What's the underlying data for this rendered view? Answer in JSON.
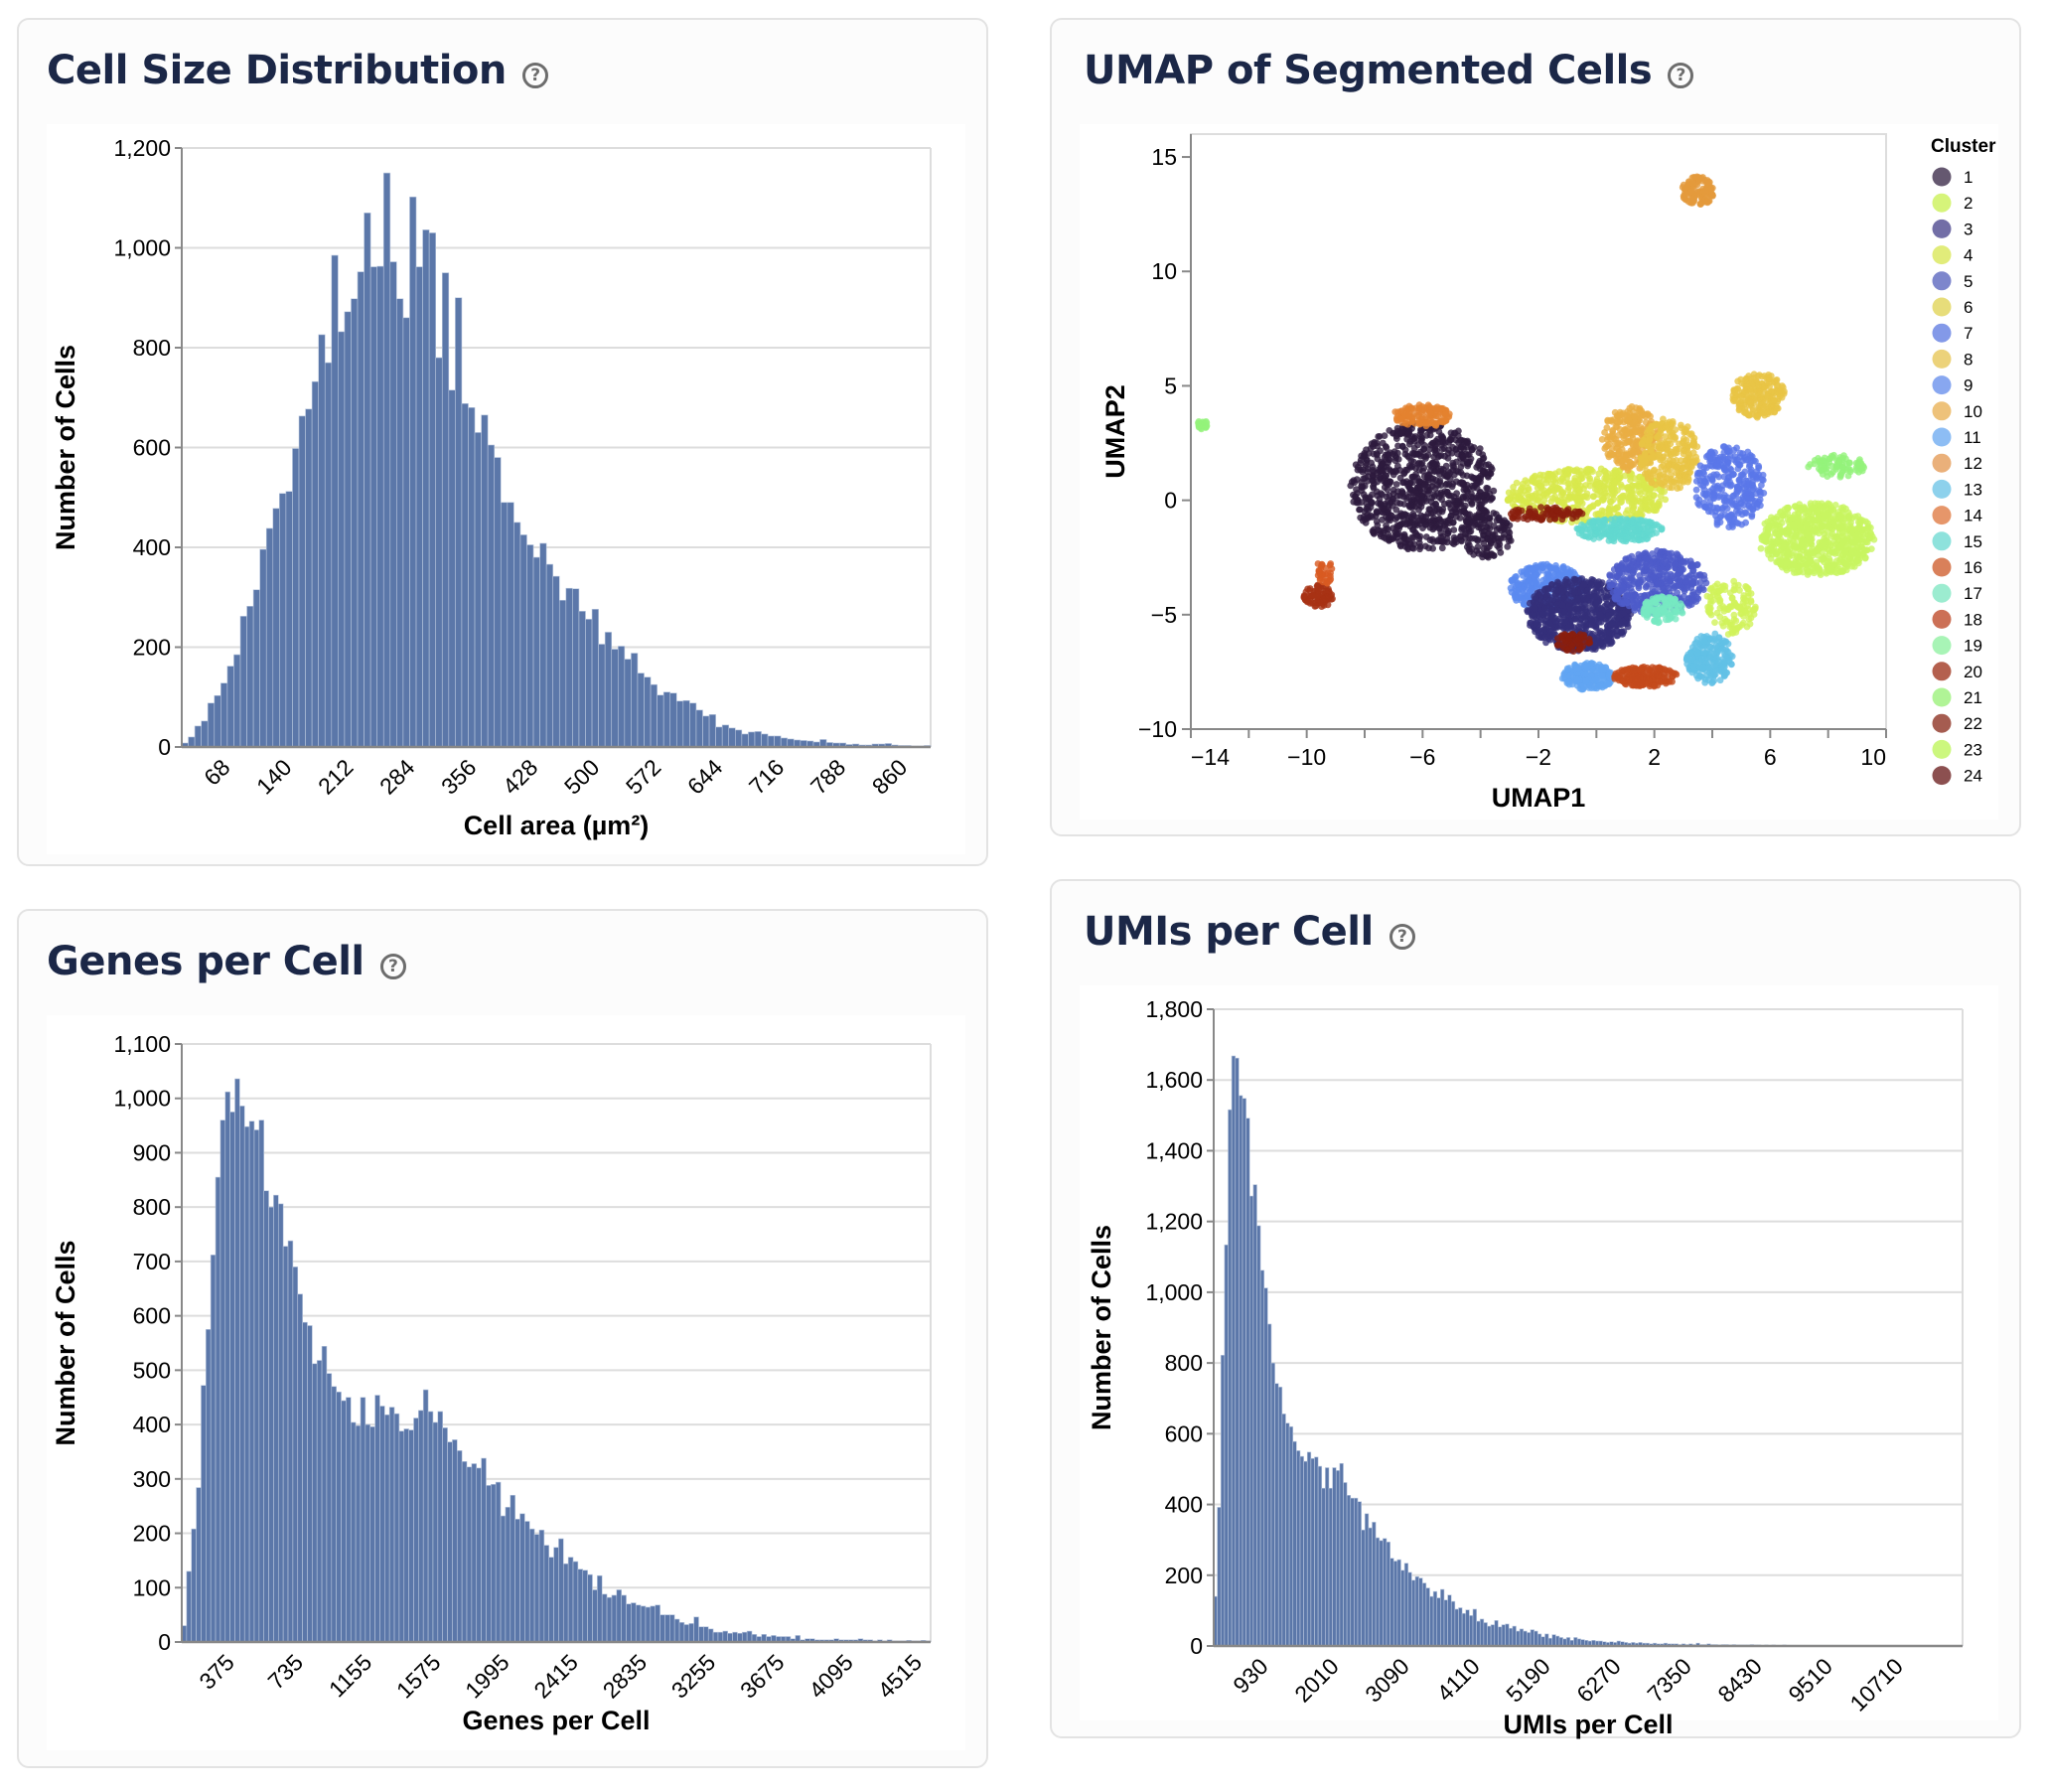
{
  "cards": {
    "cell_size": {
      "title": "Cell Size Distribution",
      "help": "?"
    },
    "umap": {
      "title": "UMAP of Segmented Cells",
      "help": "?"
    },
    "genes": {
      "title": "Genes per Cell",
      "help": "?"
    },
    "umis": {
      "title": "UMIs per Cell",
      "help": "?"
    }
  },
  "colors": {
    "bar": "#5b77a9",
    "title": "#1b2747"
  },
  "chart_data": [
    {
      "id": "cell_size",
      "type": "bar",
      "title": "Cell Size Distribution",
      "xlabel": "Cell area (µm²)",
      "ylabel": "Number of Cells",
      "ylim": [
        0,
        1200
      ],
      "yticks": [
        0,
        200,
        400,
        600,
        800,
        1000,
        1200
      ],
      "xtick_labels": [
        "68",
        "140",
        "212",
        "284",
        "356",
        "428",
        "500",
        "572",
        "644",
        "716",
        "788",
        "860"
      ],
      "grid": true,
      "values": [
        8,
        20,
        42,
        52,
        88,
        103,
        128,
        162,
        185,
        262,
        282,
        315,
        396,
        438,
        478,
        508,
        512,
        598,
        663,
        677,
        732,
        826,
        770,
        985,
        832,
        872,
        898,
        952,
        1070,
        962,
        963,
        1150,
        972,
        898,
        860,
        1102,
        962,
        1036,
        1030,
        780,
        950,
        715,
        900,
        688,
        680,
        630,
        665,
        605,
        580,
        490,
        490,
        450,
        425,
        405,
        380,
        408,
        366,
        342,
        294,
        318,
        317,
        272,
        256,
        276,
        206,
        230,
        196,
        202,
        176,
        188,
        148,
        140,
        125,
        104,
        110,
        108,
        92,
        93,
        88,
        74,
        62,
        65,
        40,
        44,
        38,
        34,
        26,
        30,
        31,
        26,
        22,
        22,
        18,
        16,
        14,
        13,
        12,
        10,
        15,
        9,
        8,
        8,
        5,
        6,
        4,
        4,
        6,
        6,
        7,
        4,
        3,
        3,
        2,
        2,
        3
      ],
      "legend": "none"
    },
    {
      "id": "umap",
      "type": "scatter",
      "title": "UMAP of Segmented Cells",
      "xlabel": "UMAP1",
      "ylabel": "UMAP2",
      "xlim": [
        -14,
        10
      ],
      "ylim": [
        -10,
        16
      ],
      "xticks": [
        -14,
        -10,
        -6,
        -2,
        2,
        6,
        10
      ],
      "yticks": [
        -10,
        -5,
        0,
        5,
        10,
        15
      ],
      "legend": "right",
      "legend_title": "Cluster",
      "clusters": [
        {
          "name": "1",
          "color": "#2d1a3d"
        },
        {
          "name": "2",
          "color": "#d1f25a"
        },
        {
          "name": "3",
          "color": "#35307a"
        },
        {
          "name": "4",
          "color": "#d8e84c"
        },
        {
          "name": "5",
          "color": "#4e5bc9"
        },
        {
          "name": "6",
          "color": "#e3d64a"
        },
        {
          "name": "7",
          "color": "#5a77e8"
        },
        {
          "name": "8",
          "color": "#e9c445"
        },
        {
          "name": "9",
          "color": "#5a8af0"
        },
        {
          "name": "10",
          "color": "#eaae44"
        },
        {
          "name": "11",
          "color": "#62a5f2"
        },
        {
          "name": "12",
          "color": "#e49a3c"
        },
        {
          "name": "13",
          "color": "#61c1e6"
        },
        {
          "name": "14",
          "color": "#e4822f"
        },
        {
          "name": "15",
          "color": "#62d8cf"
        },
        {
          "name": "16",
          "color": "#d85a22"
        },
        {
          "name": "17",
          "color": "#77e8c2"
        },
        {
          "name": "18",
          "color": "#c44a1c"
        },
        {
          "name": "19",
          "color": "#8af2a8"
        },
        {
          "name": "20",
          "color": "#a83214"
        },
        {
          "name": "21",
          "color": "#94f27a"
        },
        {
          "name": "22",
          "color": "#8a1e0e"
        },
        {
          "name": "23",
          "color": "#c8f560"
        },
        {
          "name": "24",
          "color": "#6a1c1c"
        }
      ],
      "legend_colors": [
        "#655870",
        "#d6f47a",
        "#726ea6",
        "#e1ec7a",
        "#7d86cc",
        "#e7dd7a",
        "#8399e8",
        "#ecd27a",
        "#88a7f0",
        "#eec27a",
        "#8dbdf4",
        "#eab07a",
        "#8dd1ec",
        "#e6966a",
        "#8ee2dc",
        "#d9805a",
        "#9cecd0",
        "#cc7056",
        "#a8f4b6",
        "#b4604e",
        "#b0f496",
        "#a55c50",
        "#ccf77e",
        "#8c5050"
      ],
      "groups": [
        {
          "cluster": "1",
          "cx": -6.0,
          "cy": 0.6,
          "rx": 2.5,
          "ry": 2.8,
          "n": 900
        },
        {
          "cluster": "14",
          "cx": -6.0,
          "cy": 3.7,
          "rx": 1.0,
          "ry": 0.5,
          "n": 120
        },
        {
          "cluster": "1",
          "cx": -3.8,
          "cy": -1.5,
          "rx": 0.9,
          "ry": 1.0,
          "n": 120
        },
        {
          "cluster": "21",
          "cx": -13.6,
          "cy": 3.3,
          "rx": 0.18,
          "ry": 0.2,
          "n": 20
        },
        {
          "cluster": "20",
          "cx": -9.6,
          "cy": -4.2,
          "rx": 0.5,
          "ry": 0.5,
          "n": 80
        },
        {
          "cluster": "16",
          "cx": -9.4,
          "cy": -3.1,
          "rx": 0.3,
          "ry": 0.6,
          "n": 30
        },
        {
          "cluster": "12",
          "cx": 3.5,
          "cy": 13.5,
          "rx": 0.55,
          "ry": 0.65,
          "n": 120
        },
        {
          "cluster": "4",
          "cx": -0.3,
          "cy": 0.2,
          "rx": 2.8,
          "ry": 1.2,
          "n": 500
        },
        {
          "cluster": "22",
          "cx": -1.8,
          "cy": -0.6,
          "rx": 1.4,
          "ry": 0.3,
          "n": 80
        },
        {
          "cluster": "10",
          "cx": 1.2,
          "cy": 2.7,
          "rx": 1.0,
          "ry": 1.4,
          "n": 250
        },
        {
          "cluster": "8",
          "cx": 2.5,
          "cy": 2.0,
          "rx": 1.0,
          "ry": 1.6,
          "n": 250
        },
        {
          "cluster": "8",
          "cx": 5.6,
          "cy": 4.6,
          "rx": 0.9,
          "ry": 1.0,
          "n": 200
        },
        {
          "cluster": "7",
          "cx": 4.6,
          "cy": 0.6,
          "rx": 1.2,
          "ry": 1.8,
          "n": 300
        },
        {
          "cluster": "15",
          "cx": 0.8,
          "cy": -1.3,
          "rx": 1.5,
          "ry": 0.5,
          "n": 200
        },
        {
          "cluster": "23",
          "cx": 7.6,
          "cy": -1.7,
          "rx": 2.0,
          "ry": 1.6,
          "n": 700
        },
        {
          "cluster": "21",
          "cx": 8.3,
          "cy": 1.5,
          "rx": 1.0,
          "ry": 0.5,
          "n": 80
        },
        {
          "cluster": "9",
          "cx": -1.7,
          "cy": -3.8,
          "rx": 1.3,
          "ry": 1.0,
          "n": 300
        },
        {
          "cluster": "3",
          "cx": -0.6,
          "cy": -5.0,
          "rx": 1.8,
          "ry": 1.6,
          "n": 700
        },
        {
          "cluster": "5",
          "cx": 2.1,
          "cy": -3.6,
          "rx": 1.7,
          "ry": 1.4,
          "n": 450
        },
        {
          "cluster": "17",
          "cx": 2.3,
          "cy": -4.8,
          "rx": 0.7,
          "ry": 0.6,
          "n": 100
        },
        {
          "cluster": "11",
          "cx": -0.3,
          "cy": -7.7,
          "rx": 0.9,
          "ry": 0.6,
          "n": 200
        },
        {
          "cluster": "18",
          "cx": 1.7,
          "cy": -7.7,
          "rx": 1.1,
          "ry": 0.45,
          "n": 180
        },
        {
          "cluster": "13",
          "cx": 3.9,
          "cy": -6.9,
          "rx": 0.8,
          "ry": 1.1,
          "n": 200
        },
        {
          "cluster": "2",
          "cx": 4.6,
          "cy": -4.7,
          "rx": 0.9,
          "ry": 1.2,
          "n": 120
        },
        {
          "cluster": "22",
          "cx": -0.8,
          "cy": -6.2,
          "rx": 0.6,
          "ry": 0.4,
          "n": 60
        }
      ]
    },
    {
      "id": "genes",
      "type": "bar",
      "title": "Genes per Cell",
      "xlabel": "Genes per Cell",
      "ylabel": "Number of Cells",
      "ylim": [
        0,
        1100
      ],
      "yticks": [
        0,
        100,
        200,
        300,
        400,
        500,
        600,
        700,
        800,
        900,
        1000,
        1100
      ],
      "xtick_labels": [
        "375",
        "735",
        "1155",
        "1575",
        "1995",
        "2415",
        "2835",
        "3255",
        "3675",
        "4095",
        "4515"
      ],
      "grid": true,
      "values": [
        30,
        130,
        208,
        284,
        472,
        575,
        712,
        855,
        960,
        1012,
        975,
        1036,
        986,
        948,
        958,
        942,
        960,
        830,
        800,
        822,
        806,
        728,
        738,
        690,
        640,
        588,
        582,
        512,
        518,
        544,
        494,
        470,
        460,
        444,
        450,
        404,
        398,
        450,
        400,
        396,
        454,
        434,
        418,
        432,
        420,
        388,
        392,
        390,
        412,
        426,
        464,
        424,
        404,
        424,
        394,
        368,
        372,
        352,
        332,
        322,
        328,
        320,
        338,
        288,
        290,
        294,
        232,
        248,
        270,
        226,
        236,
        222,
        208,
        198,
        206,
        178,
        156,
        174,
        190,
        144,
        156,
        148,
        134,
        132,
        124,
        96,
        122,
        88,
        82,
        86,
        96,
        86,
        70,
        72,
        68,
        66,
        64,
        66,
        68,
        50,
        50,
        50,
        42,
        36,
        32,
        34,
        46,
        28,
        28,
        24,
        18,
        18,
        20,
        16,
        18,
        16,
        18,
        20,
        14,
        10,
        14,
        10,
        12,
        10,
        10,
        10,
        6,
        12,
        4,
        6,
        6,
        4,
        4,
        4,
        4,
        6,
        4,
        4,
        4,
        4,
        6,
        4,
        4,
        2,
        4,
        2,
        4,
        2,
        2,
        2,
        3,
        2,
        2,
        3,
        2
      ],
      "legend": "none"
    },
    {
      "id": "umis",
      "type": "bar",
      "title": "UMIs per Cell",
      "xlabel": "UMIs per Cell",
      "ylabel": "Number of Cells",
      "ylim": [
        0,
        1800
      ],
      "yticks": [
        0,
        200,
        400,
        600,
        800,
        1000,
        1200,
        1400,
        1600,
        1800
      ],
      "xtick_labels": [
        "930",
        "2010",
        "3090",
        "4110",
        "5190",
        "6270",
        "7350",
        "8430",
        "9510",
        "10710"
      ],
      "grid": true,
      "values": [
        140,
        392,
        822,
        1134,
        1516,
        1668,
        1662,
        1556,
        1548,
        1492,
        1272,
        1304,
        1188,
        1062,
        1012,
        910,
        800,
        742,
        732,
        656,
        630,
        620,
        578,
        552,
        536,
        522,
        548,
        530,
        534,
        508,
        446,
        504,
        446,
        504,
        496,
        516,
        462,
        426,
        418,
        418,
        408,
        328,
        374,
        334,
        350,
        306,
        298,
        304,
        294,
        248,
        240,
        244,
        214,
        234,
        208,
        186,
        196,
        192,
        178,
        164,
        140,
        154,
        136,
        160,
        130,
        144,
        126,
        104,
        108,
        92,
        102,
        86,
        104,
        70,
        76,
        66,
        56,
        60,
        72,
        54,
        60,
        62,
        50,
        56,
        42,
        48,
        42,
        38,
        46,
        42,
        34,
        26,
        34,
        22,
        32,
        28,
        24,
        20,
        24,
        16,
        24,
        20,
        18,
        16,
        14,
        16,
        14,
        14,
        12,
        10,
        12,
        10,
        14,
        12,
        10,
        8,
        10,
        8,
        10,
        8,
        8,
        6,
        8,
        6,
        6,
        8,
        6,
        6,
        6,
        4,
        6,
        4,
        6,
        4,
        8,
        4,
        4,
        6,
        4,
        4,
        3,
        4,
        4,
        3,
        4,
        3,
        3,
        3,
        3,
        4,
        3,
        3,
        2,
        3,
        2,
        3,
        2,
        2,
        3,
        2,
        2,
        2,
        2,
        2,
        2,
        2,
        2,
        2,
        2,
        2,
        2,
        2,
        2,
        2,
        2,
        2,
        1,
        2,
        1,
        2,
        1,
        2,
        1,
        2,
        1,
        1,
        1,
        1,
        1,
        1,
        1,
        1,
        1,
        1,
        1,
        1,
        1,
        1,
        1,
        1,
        1,
        1,
        1,
        1,
        1,
        1,
        1,
        1
      ],
      "legend": "none"
    }
  ]
}
